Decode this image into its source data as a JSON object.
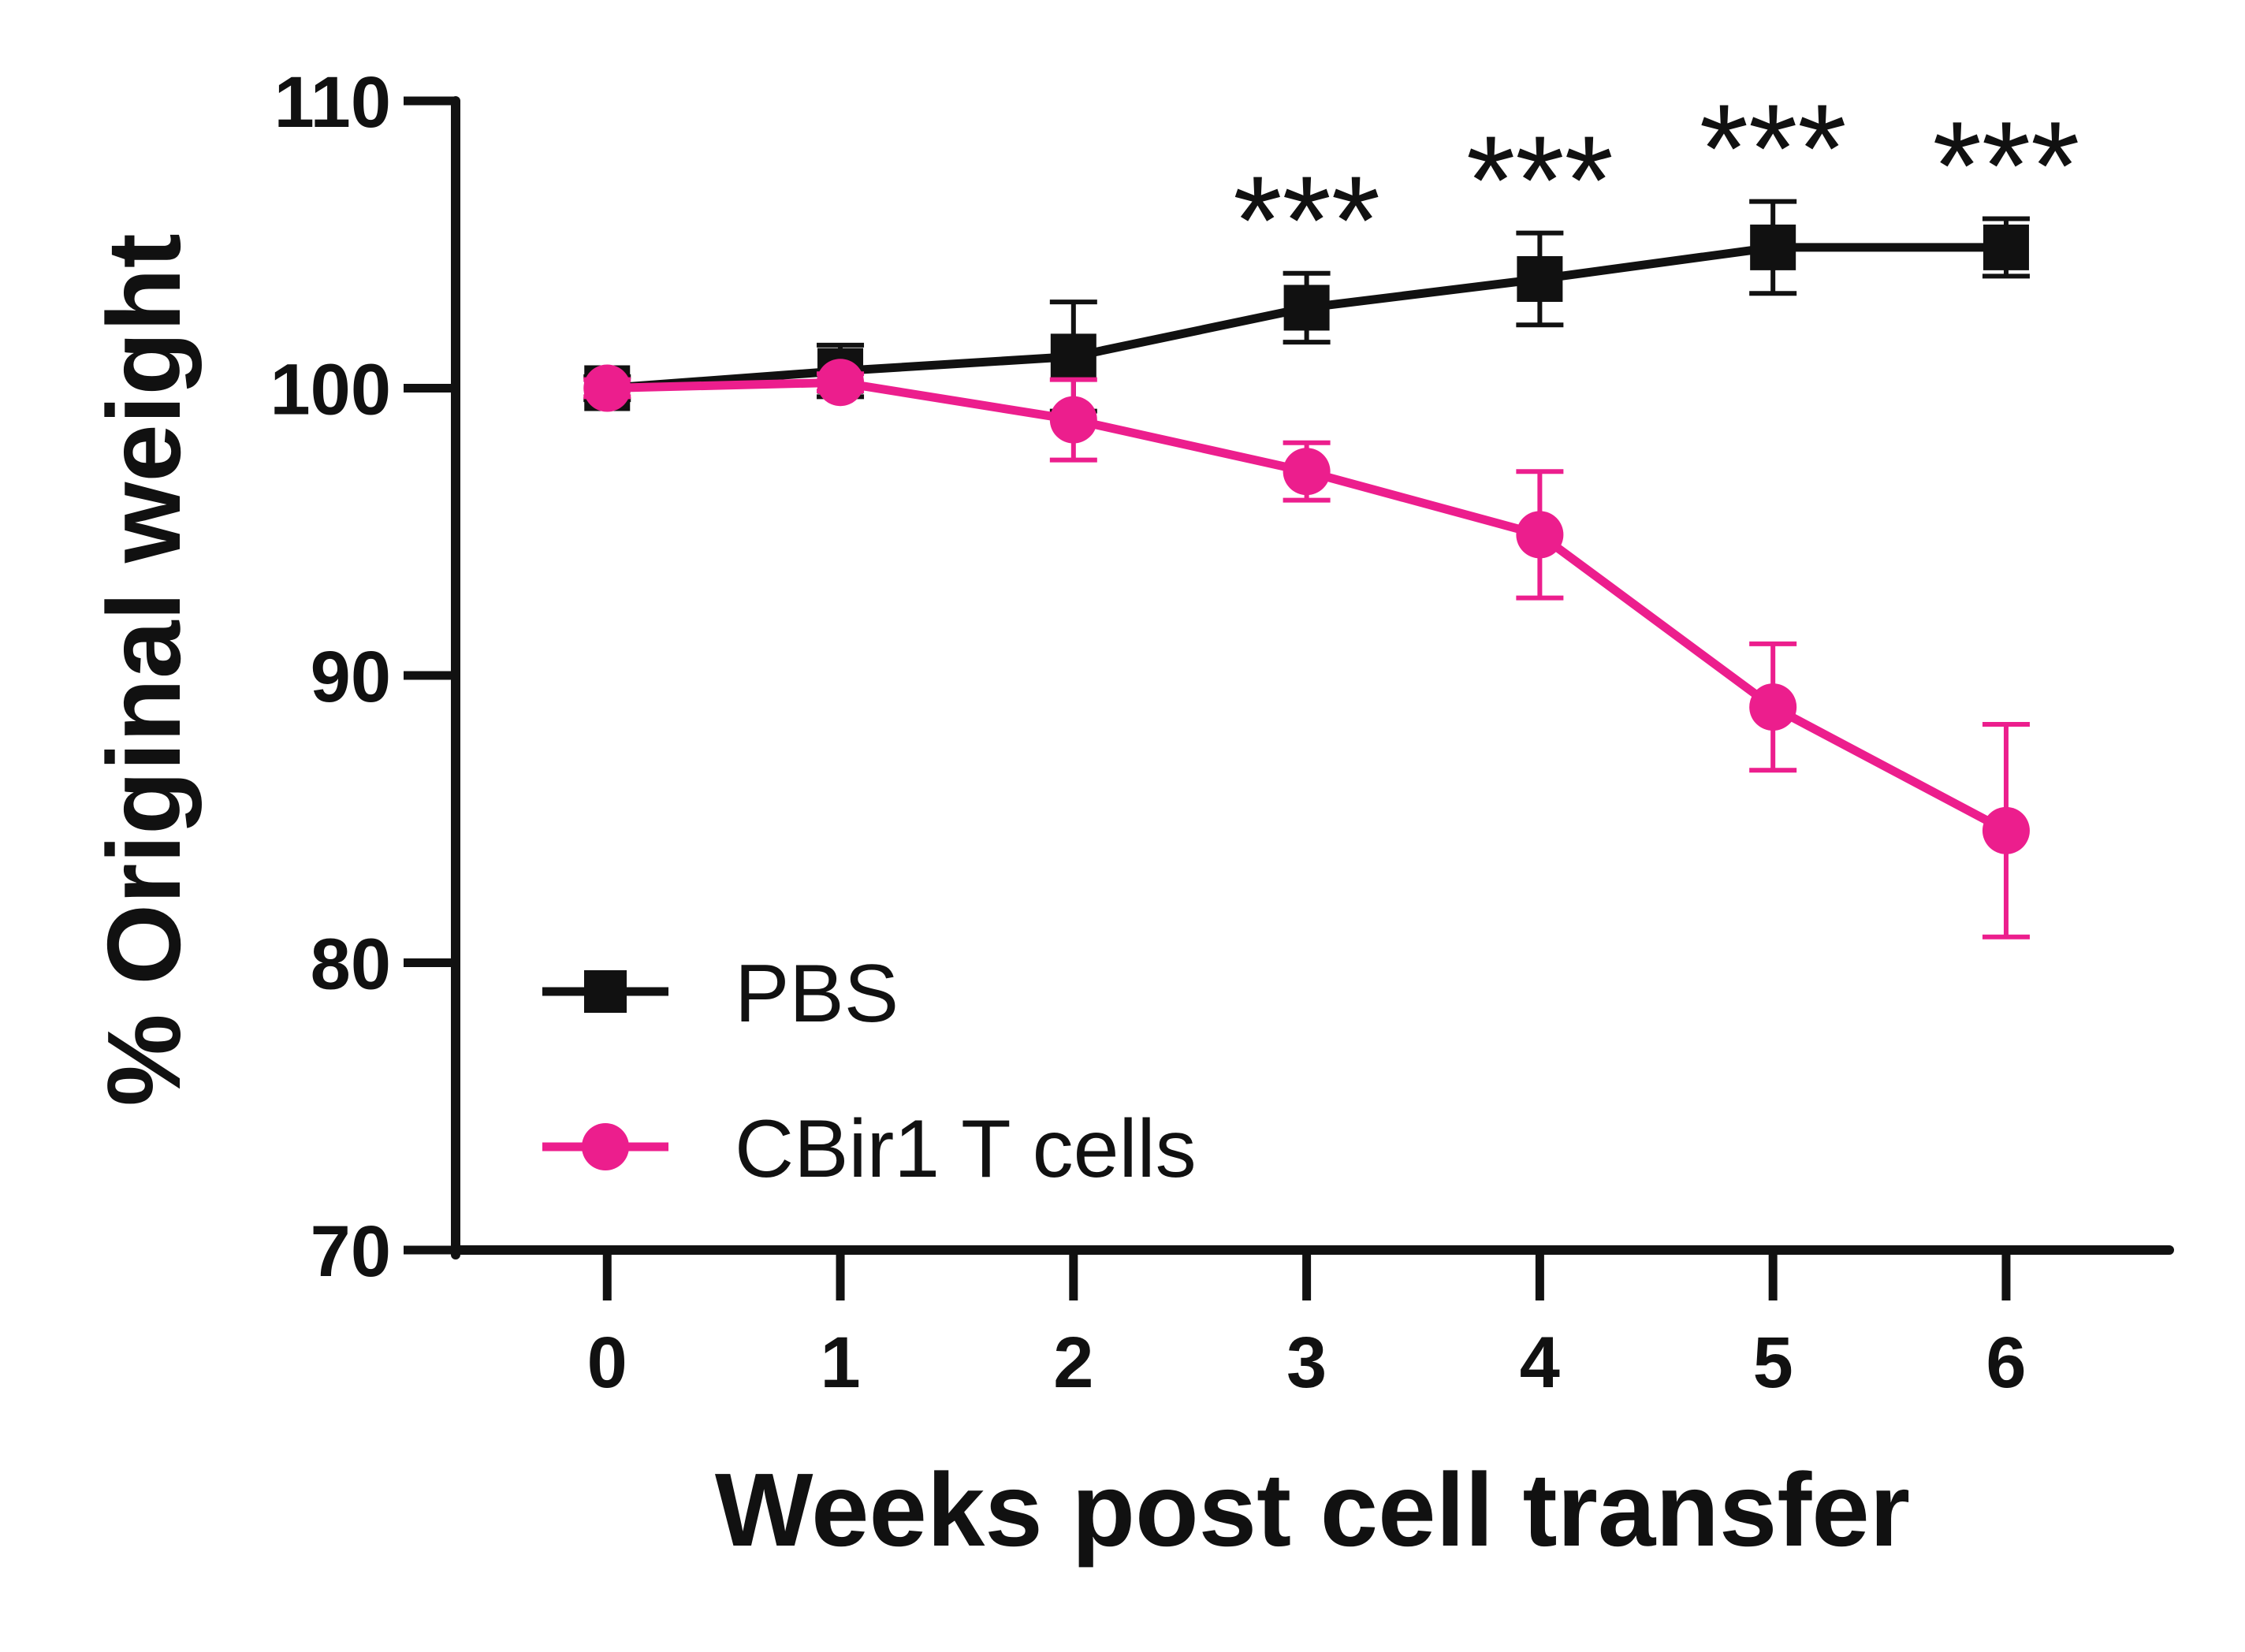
{
  "chart_data": {
    "type": "line",
    "title": "",
    "xlabel": "Weeks post cell transfer",
    "ylabel": "% Original weight",
    "x": [
      0,
      1,
      2,
      3,
      4,
      5,
      6
    ],
    "xlim": [
      -0.65,
      6.7
    ],
    "ylim": [
      70,
      110
    ],
    "yticks": [
      70,
      80,
      90,
      100,
      110
    ],
    "grid": false,
    "legend_position": "bottom-left",
    "series": [
      {
        "name": "PBS",
        "marker": "square",
        "color": "#111111",
        "values": [
          100,
          100.6,
          101.1,
          102.8,
          103.8,
          104.9,
          104.9
        ],
        "errors": [
          0.4,
          0.9,
          1.9,
          1.2,
          1.6,
          1.6,
          1.0
        ]
      },
      {
        "name": "CBir1 T cells",
        "marker": "circle",
        "color": "#ec1e8d",
        "values": [
          100,
          100.2,
          98.9,
          97.1,
          94.9,
          88.9,
          84.6
        ],
        "errors": [
          0.3,
          0.3,
          1.4,
          1.0,
          2.2,
          2.2,
          3.7
        ]
      }
    ],
    "annotations": [
      {
        "x": 3,
        "text": "***"
      },
      {
        "x": 4,
        "text": "***"
      },
      {
        "x": 5,
        "text": "***"
      },
      {
        "x": 6,
        "text": "***"
      }
    ]
  }
}
